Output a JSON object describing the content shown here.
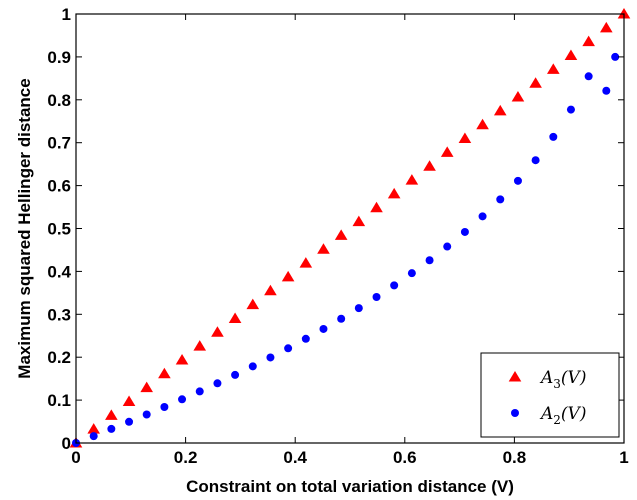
{
  "chart_data": {
    "type": "scatter",
    "title": "",
    "xlabel": "Constraint on total variation distance (V)",
    "ylabel": "Maximum squared Hellinger distance",
    "xlim": [
      0,
      1
    ],
    "ylim": [
      0,
      1
    ],
    "x_ticks": [
      "0",
      "0.2",
      "0.4",
      "0.6",
      "0.8",
      "1"
    ],
    "y_ticks": [
      "0",
      "0.1",
      "0.2",
      "0.3",
      "0.4",
      "0.5",
      "0.6",
      "0.7",
      "0.8",
      "0.9",
      "1"
    ],
    "grid": false,
    "legend_position": "bottom-right",
    "series": [
      {
        "name": "A3(V)",
        "legend_main": "A",
        "legend_sub": "3",
        "legend_arg": "(V)",
        "marker": "triangle",
        "color": "#ff0000",
        "x": [
          0,
          0.0323,
          0.0645,
          0.0968,
          0.129,
          0.1613,
          0.1935,
          0.2258,
          0.2581,
          0.2903,
          0.3226,
          0.3548,
          0.3871,
          0.4194,
          0.4516,
          0.4839,
          0.5161,
          0.5484,
          0.5806,
          0.6129,
          0.6452,
          0.6774,
          0.7097,
          0.7419,
          0.7742,
          0.8065,
          0.8387,
          0.871,
          0.9032,
          0.9355,
          0.9677,
          1
        ],
        "y": [
          0,
          0.0323,
          0.0645,
          0.0968,
          0.129,
          0.1613,
          0.1935,
          0.2258,
          0.2581,
          0.2903,
          0.3226,
          0.3548,
          0.3871,
          0.4194,
          0.4516,
          0.4839,
          0.5161,
          0.5484,
          0.5806,
          0.6129,
          0.6452,
          0.6774,
          0.7097,
          0.7419,
          0.7742,
          0.8065,
          0.8387,
          0.871,
          0.9032,
          0.9355,
          0.9677,
          1
        ]
      },
      {
        "name": "A2(V)",
        "legend_main": "A",
        "legend_sub": "2",
        "legend_arg": "(V)",
        "marker": "circle",
        "color": "#0000ff",
        "x": [
          0,
          0.0323,
          0.0645,
          0.0968,
          0.129,
          0.1613,
          0.1935,
          0.2258,
          0.2581,
          0.2903,
          0.3226,
          0.3548,
          0.3871,
          0.4194,
          0.4516,
          0.4839,
          0.5161,
          0.5484,
          0.5806,
          0.6129,
          0.6452,
          0.6774,
          0.7097,
          0.7419,
          0.7742,
          0.8065,
          0.8387,
          0.871,
          0.9032,
          0.9355,
          0.9677,
          0.9839
        ],
        "y": [
          0,
          0.016,
          0.0328,
          0.0494,
          0.0664,
          0.0839,
          0.1019,
          0.1203,
          0.1392,
          0.1587,
          0.1787,
          0.1994,
          0.2208,
          0.2429,
          0.2658,
          0.2896,
          0.3144,
          0.3403,
          0.3674,
          0.3959,
          0.426,
          0.4579,
          0.4919,
          0.5284,
          0.5679,
          0.6111,
          0.6592,
          0.7136,
          0.7772,
          0.8548,
          0.8211,
          0.9
        ]
      }
    ]
  }
}
